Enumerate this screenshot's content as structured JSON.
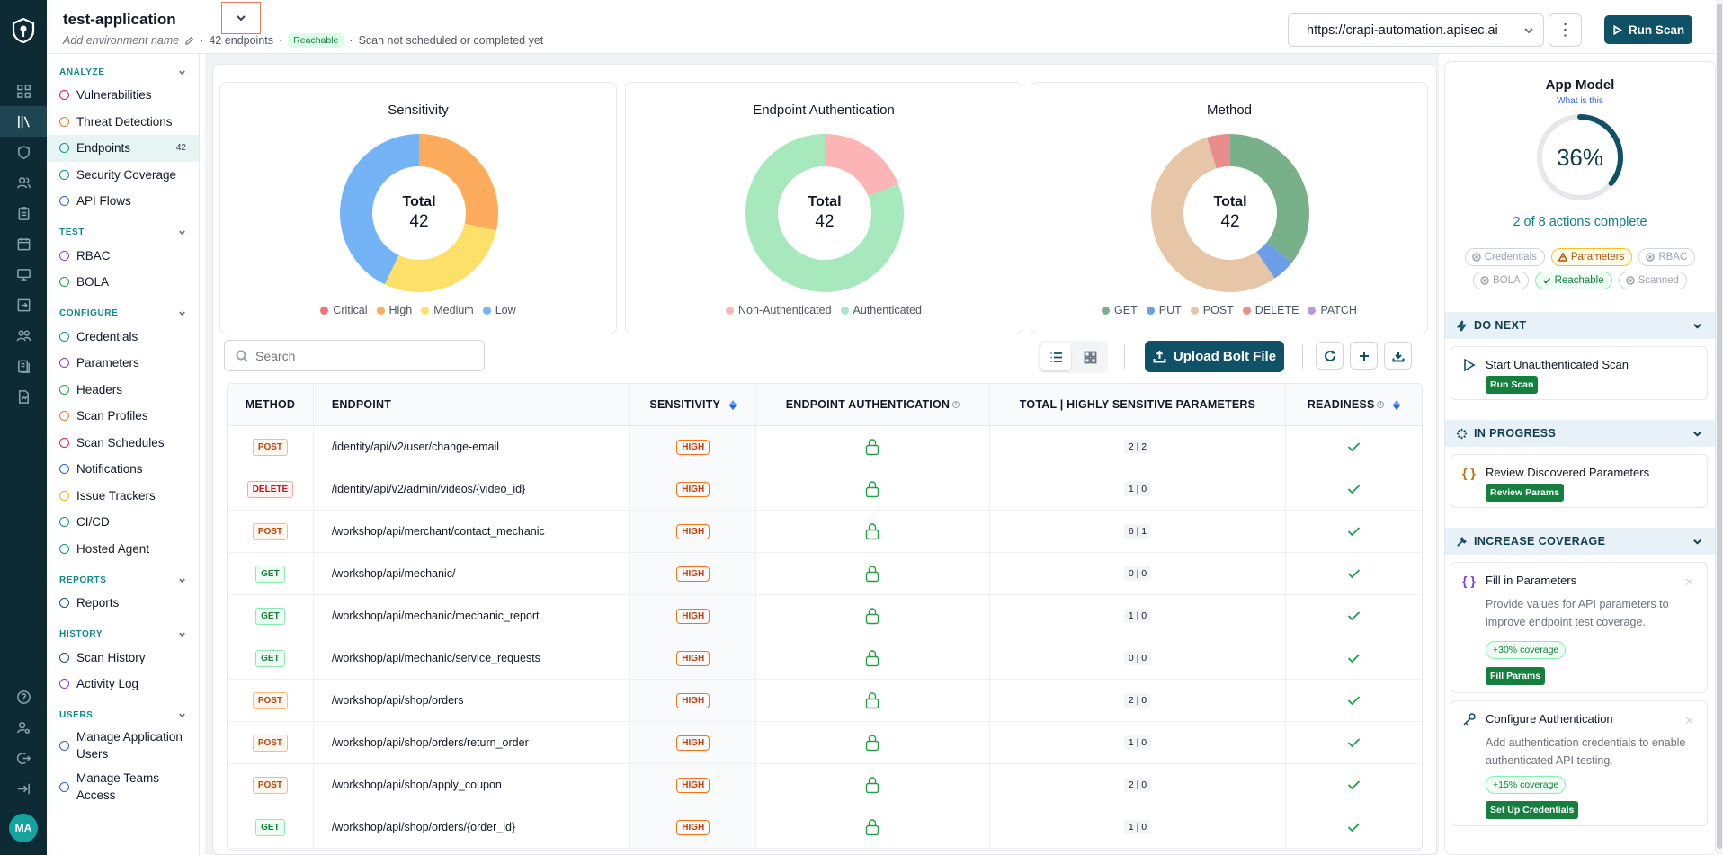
{
  "app": {
    "title": "test-application",
    "env_placeholder": "Add environment name",
    "endpoints_count": "42 endpoints",
    "reachable_badge": "Reachable",
    "scan_status": "Scan not scheduled or completed yet",
    "url": "https://crapi-automation.apisec.ai",
    "run_scan": "Run Scan"
  },
  "user": {
    "initials": "MA"
  },
  "sidebar": {
    "sections": [
      {
        "title": "ANALYZE",
        "items": [
          {
            "label": "Vulnerabilities",
            "color": "#e11d48"
          },
          {
            "label": "Threat Detections",
            "color": "#f97316"
          },
          {
            "label": "Endpoints",
            "color": "#0d9488",
            "count": "42",
            "active": true
          },
          {
            "label": "Security Coverage",
            "color": "#0d9488"
          },
          {
            "label": "API Flows",
            "color": "#2563eb"
          }
        ]
      },
      {
        "title": "TEST",
        "items": [
          {
            "label": "RBAC",
            "color": "#7c3aed"
          },
          {
            "label": "BOLA",
            "color": "#16a34a"
          }
        ]
      },
      {
        "title": "CONFIGURE",
        "items": [
          {
            "label": "Credentials",
            "color": "#0d9488"
          },
          {
            "label": "Parameters",
            "color": "#7c3aed"
          },
          {
            "label": "Headers",
            "color": "#16a34a"
          },
          {
            "label": "Scan Profiles",
            "color": "#f97316"
          },
          {
            "label": "Scan Schedules",
            "color": "#e11d48"
          },
          {
            "label": "Notifications",
            "color": "#2563eb"
          },
          {
            "label": "Issue Trackers",
            "color": "#eab308"
          },
          {
            "label": "CI/CD",
            "color": "#0d9488"
          },
          {
            "label": "Hosted Agent",
            "color": "#0d9488"
          }
        ]
      },
      {
        "title": "REPORTS",
        "items": [
          {
            "label": "Reports",
            "color": "#0f5166"
          }
        ]
      },
      {
        "title": "HISTORY",
        "items": [
          {
            "label": "Scan History",
            "color": "#0f5166"
          },
          {
            "label": "Activity Log",
            "color": "#7c3aed"
          }
        ]
      },
      {
        "title": "USERS",
        "items": [
          {
            "label": "Manage Application Users",
            "color": "#2563eb",
            "two": true
          },
          {
            "label": "Manage Teams Access",
            "color": "#2563eb",
            "two": true
          }
        ]
      }
    ]
  },
  "chart_data": [
    {
      "type": "pie",
      "title": "Sensitivity",
      "center_label": "Total",
      "center_value": "42",
      "categories": [
        "Critical",
        "High",
        "Medium",
        "Low"
      ],
      "values": [
        0,
        12,
        12,
        18
      ],
      "colors": [
        "#f87171",
        "#fdab5c",
        "#fde06a",
        "#74b3f5"
      ]
    },
    {
      "type": "pie",
      "title": "Endpoint Authentication",
      "center_label": "Total",
      "center_value": "42",
      "categories": [
        "Non-Authenticated",
        "Authenticated"
      ],
      "values": [
        8,
        34
      ],
      "colors": [
        "#fdb4b4",
        "#a7e8bd"
      ]
    },
    {
      "type": "pie",
      "title": "Method",
      "center_label": "Total",
      "center_value": "42",
      "categories": [
        "GET",
        "PUT",
        "POST",
        "DELETE",
        "PATCH"
      ],
      "values": [
        15,
        2,
        23,
        2,
        0
      ],
      "colors": [
        "#78b08a",
        "#6d9de8",
        "#e6c6a6",
        "#e98c8c",
        "#b69ae0"
      ]
    }
  ],
  "toolbar": {
    "search_placeholder": "Search",
    "upload": "Upload Bolt File"
  },
  "table": {
    "headers": [
      "METHOD",
      "ENDPOINT",
      "SENSITIVITY",
      "ENDPOINT AUTHENTICATION",
      "TOTAL | HIGHLY SENSITIVE PARAMETERS",
      "READINESS"
    ],
    "rows": [
      {
        "method": "POST",
        "endpoint": "/identity/api/v2/user/change-email",
        "sensitivity": "HIGH",
        "params": "2 | 2"
      },
      {
        "method": "DELETE",
        "endpoint": "/identity/api/v2/admin/videos/{video_id}",
        "sensitivity": "HIGH",
        "params": "1 | 0"
      },
      {
        "method": "POST",
        "endpoint": "/workshop/api/merchant/contact_mechanic",
        "sensitivity": "HIGH",
        "params": "6 | 1"
      },
      {
        "method": "GET",
        "endpoint": "/workshop/api/mechanic/",
        "sensitivity": "HIGH",
        "params": "0 | 0"
      },
      {
        "method": "GET",
        "endpoint": "/workshop/api/mechanic/mechanic_report",
        "sensitivity": "HIGH",
        "params": "1 | 0"
      },
      {
        "method": "GET",
        "endpoint": "/workshop/api/mechanic/service_requests",
        "sensitivity": "HIGH",
        "params": "0 | 0"
      },
      {
        "method": "POST",
        "endpoint": "/workshop/api/shop/orders",
        "sensitivity": "HIGH",
        "params": "2 | 0"
      },
      {
        "method": "POST",
        "endpoint": "/workshop/api/shop/orders/return_order",
        "sensitivity": "HIGH",
        "params": "1 | 0"
      },
      {
        "method": "POST",
        "endpoint": "/workshop/api/shop/apply_coupon",
        "sensitivity": "HIGH",
        "params": "2 | 0"
      },
      {
        "method": "GET",
        "endpoint": "/workshop/api/shop/orders/{order_id}",
        "sensitivity": "HIGH",
        "params": "1 | 0"
      }
    ]
  },
  "app_model": {
    "title": "App Model",
    "what_is_this": "What is this",
    "progress_percent": 36,
    "percent_label": "36%",
    "actions": "2 of 8 actions complete",
    "chips": [
      {
        "label": "Credentials",
        "state": "todo"
      },
      {
        "label": "Parameters",
        "state": "warn"
      },
      {
        "label": "RBAC",
        "state": "todo"
      },
      {
        "label": "BOLA",
        "state": "todo"
      },
      {
        "label": "Reachable",
        "state": "done"
      },
      {
        "label": "Scanned",
        "state": "todo"
      }
    ],
    "do_next": {
      "title": "DO NEXT",
      "item": "Start Unauthenticated Scan",
      "button": "Run Scan"
    },
    "in_progress": {
      "title": "IN PROGRESS",
      "item": "Review Discovered Parameters",
      "button": "Review Params"
    },
    "increase": {
      "title": "INCREASE COVERAGE",
      "cards": [
        {
          "title": "Fill in Parameters",
          "desc": "Provide values for API parameters to improve endpoint test coverage.",
          "coverage": "+30% coverage",
          "button": "Fill Params"
        },
        {
          "title": "Configure Authentication",
          "desc": "Add authentication credentials to enable authenticated API testing.",
          "coverage": "+15% coverage",
          "button": "Set Up Credentials"
        }
      ]
    }
  }
}
